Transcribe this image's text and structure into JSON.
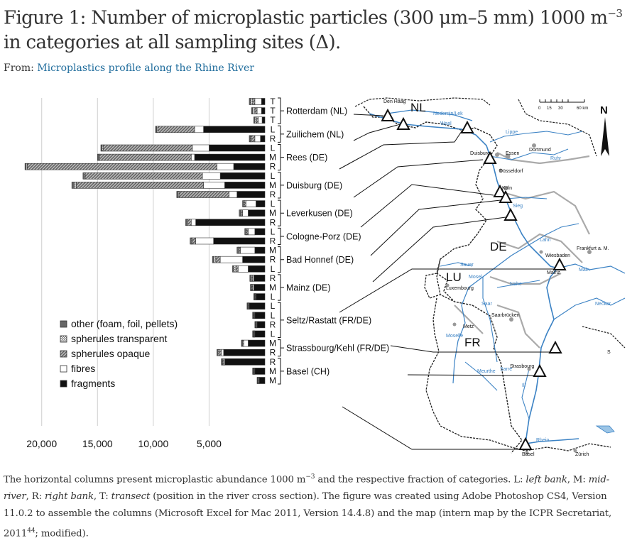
{
  "title": {
    "pre": "Figure 1: Number of microplastic particles (300 μm–5 mm) 1000 m",
    "sup": "−3",
    "post": " in categories at all sampling sites (Δ)."
  },
  "source": {
    "label": "From: ",
    "link": "Microplastics profile along the Rhine River"
  },
  "caption": {
    "p1": "The horizontal columns present microplastic abundance 1000 m",
    "sup1": "−3",
    "p2": " and the respective fraction of categories. L: ",
    "em1": "left bank",
    "p3": ", M: ",
    "em2": "mid-river",
    "p4": ", R: ",
    "em3": "right bank",
    "p5": ", T: ",
    "em4": "transect",
    "p6": " (position in the river cross section). The figure was created using Adobe Photoshop CS4, Version 11.0.2 to assemble the columns (Microsoft Excel for Mac 2011, Version 14.4.8) and the map (intern map by the ICPR Secretariat, 2011",
    "sup2": "44",
    "p7": "; modified)."
  },
  "chart_data": {
    "type": "bar",
    "orientation": "horizontal-stacked",
    "xaxis_ticks": [
      "20,000",
      "15,000",
      "10,000",
      "5,000"
    ],
    "xlim": [
      0,
      22000
    ],
    "categories_order": [
      "fragments",
      "fibres",
      "spherules opaque",
      "spherules transparent",
      "other (foam, foil, pellets)"
    ],
    "legend": [
      {
        "key": "other",
        "label": "other (foam, foil, pellets)"
      },
      {
        "key": "sph_t",
        "label": "spherules transparent"
      },
      {
        "key": "sph_o",
        "label": "spherules opaque"
      },
      {
        "key": "fibres",
        "label": "fibres"
      },
      {
        "key": "fragments",
        "label": "fragments"
      }
    ],
    "bars": [
      {
        "pos": "T",
        "fragments": 300,
        "fibres": 600,
        "sph_o": 200,
        "sph_t": 200,
        "other": 100
      },
      {
        "pos": "T",
        "fragments": 300,
        "fibres": 400,
        "sph_o": 200,
        "sph_t": 200,
        "other": 100
      },
      {
        "pos": "T",
        "fragments": 250,
        "fibres": 350,
        "sph_o": 150,
        "sph_t": 150,
        "other": 100
      },
      {
        "pos": "L",
        "fragments": 5500,
        "fibres": 800,
        "sph_o": 3300,
        "sph_t": 100,
        "other": 100
      },
      {
        "pos": "R",
        "fragments": 400,
        "fibres": 500,
        "sph_o": 300,
        "sph_t": 100,
        "other": 100
      },
      {
        "pos": "L",
        "fragments": 5000,
        "fibres": 1500,
        "sph_o": 8000,
        "sph_t": 100,
        "other": 100
      },
      {
        "pos": "M",
        "fragments": 6300,
        "fibres": 300,
        "sph_o": 8200,
        "sph_t": 100,
        "other": 100
      },
      {
        "pos": "R",
        "fragments": 2800,
        "fibres": 1500,
        "sph_o": 17000,
        "sph_t": 100,
        "other": 100
      },
      {
        "pos": "L",
        "fragments": 4000,
        "fibres": 1600,
        "sph_o": 10500,
        "sph_t": 100,
        "other": 100
      },
      {
        "pos": "M",
        "fragments": 3600,
        "fibres": 1900,
        "sph_o": 11400,
        "sph_t": 200,
        "other": 200
      },
      {
        "pos": "R",
        "fragments": 2500,
        "fibres": 700,
        "sph_o": 4500,
        "sph_t": 100,
        "other": 100
      },
      {
        "pos": "L",
        "fragments": 800,
        "fibres": 900,
        "sph_o": 100,
        "sph_t": 100,
        "other": 100
      },
      {
        "pos": "M",
        "fragments": 1500,
        "fibres": 500,
        "sph_o": 100,
        "sph_t": 100,
        "other": 100
      },
      {
        "pos": "R",
        "fragments": 6200,
        "fibres": 400,
        "sph_o": 300,
        "sph_t": 100,
        "other": 100
      },
      {
        "pos": "L",
        "fragments": 900,
        "fibres": 600,
        "sph_o": 100,
        "sph_t": 100,
        "other": 100
      },
      {
        "pos": "R",
        "fragments": 4600,
        "fibres": 1600,
        "sph_o": 300,
        "sph_t": 100,
        "other": 100
      },
      {
        "pos": "M",
        "fragments": 900,
        "fibres": 1300,
        "sph_o": 100,
        "sph_t": 100,
        "other": 100
      },
      {
        "pos": "R",
        "fragments": 2000,
        "fibres": 2000,
        "sph_o": 400,
        "sph_t": 200,
        "other": 100
      },
      {
        "pos": "L",
        "fragments": 1500,
        "fibres": 900,
        "sph_o": 200,
        "sph_t": 200,
        "other": 100
      },
      {
        "pos": "R",
        "fragments": 1000,
        "fibres": 100,
        "sph_o": 100,
        "sph_t": 100,
        "other": 50
      },
      {
        "pos": "M",
        "fragments": 1000,
        "fibres": 100,
        "sph_o": 100,
        "sph_t": 50,
        "other": 50
      },
      {
        "pos": "L",
        "fragments": 800,
        "fibres": 50,
        "sph_o": 50,
        "sph_t": 50,
        "other": 50
      },
      {
        "pos": "L",
        "fragments": 1400,
        "fibres": 50,
        "sph_o": 50,
        "sph_t": 50,
        "other": 50
      },
      {
        "pos": "L",
        "fragments": 900,
        "fibres": 50,
        "sph_o": 50,
        "sph_t": 50,
        "other": 50
      },
      {
        "pos": "R",
        "fragments": 700,
        "fibres": 50,
        "sph_o": 50,
        "sph_t": 50,
        "other": 50
      },
      {
        "pos": "L",
        "fragments": 900,
        "fibres": 50,
        "sph_o": 50,
        "sph_t": 50,
        "other": 50
      },
      {
        "pos": "M",
        "fragments": 1500,
        "fibres": 400,
        "sph_o": 100,
        "sph_t": 50,
        "other": 50
      },
      {
        "pos": "R",
        "fragments": 3700,
        "fibres": 200,
        "sph_o": 200,
        "sph_t": 100,
        "other": 100
      },
      {
        "pos": "R",
        "fragments": 3600,
        "fibres": 100,
        "sph_o": 100,
        "sph_t": 50,
        "other": 50
      },
      {
        "pos": "M",
        "fragments": 900,
        "fibres": 50,
        "sph_o": 50,
        "sph_t": 50,
        "other": 50
      },
      {
        "pos": "M",
        "fragments": 500,
        "fibres": 50,
        "sph_o": 50,
        "sph_t": 50,
        "other": 50
      }
    ],
    "sites": [
      {
        "label": "Rotterdam (NL)",
        "first": 0,
        "last": 2
      },
      {
        "label": "Zuilichem (NL)",
        "first": 3,
        "last": 4
      },
      {
        "label": "Rees (DE)",
        "first": 5,
        "last": 7
      },
      {
        "label": "Duisburg (DE)",
        "first": 8,
        "last": 10
      },
      {
        "label": "Leverkusen (DE)",
        "first": 11,
        "last": 13
      },
      {
        "label": "Cologne-Porz (DE)",
        "first": 14,
        "last": 15
      },
      {
        "label": "Bad Honnef (DE)",
        "first": 16,
        "last": 18
      },
      {
        "label": "Mainz (DE)",
        "first": 19,
        "last": 21
      },
      {
        "label": "Seltz/Rastatt (FR/DE)",
        "first": 22,
        "last": 25
      },
      {
        "label": "Strassbourg/Kehl (FR/DE)",
        "first": 26,
        "last": 27
      },
      {
        "label": "Basel (CH)",
        "first": 28,
        "last": 30
      }
    ]
  },
  "map": {
    "countries": [
      "NL",
      "DE",
      "LU",
      "FR"
    ],
    "cities": [
      "Den Haag",
      "Nederrijn/Lek",
      "Waal",
      "Lippe",
      "Dortmund",
      "Duisburg",
      "Essen",
      "Ruhr",
      "Düsseldorf",
      "Köln",
      "Sieg",
      "Lahn",
      "Wiesbaden",
      "Frankfurt a. M.",
      "Mainz",
      "Main",
      "Neckar",
      "Luxembourg",
      "Sauer",
      "Mosel",
      "Nahe",
      "Saar",
      "Saarbrücken",
      "Metz",
      "Moselle",
      "Strasbourg",
      "Ill",
      "Sarre",
      "Meurthe",
      "Rhein",
      "Basel",
      "Zürich",
      "S"
    ],
    "scale_labels": [
      "0",
      "15",
      "30",
      "60 km"
    ],
    "north": "N"
  }
}
